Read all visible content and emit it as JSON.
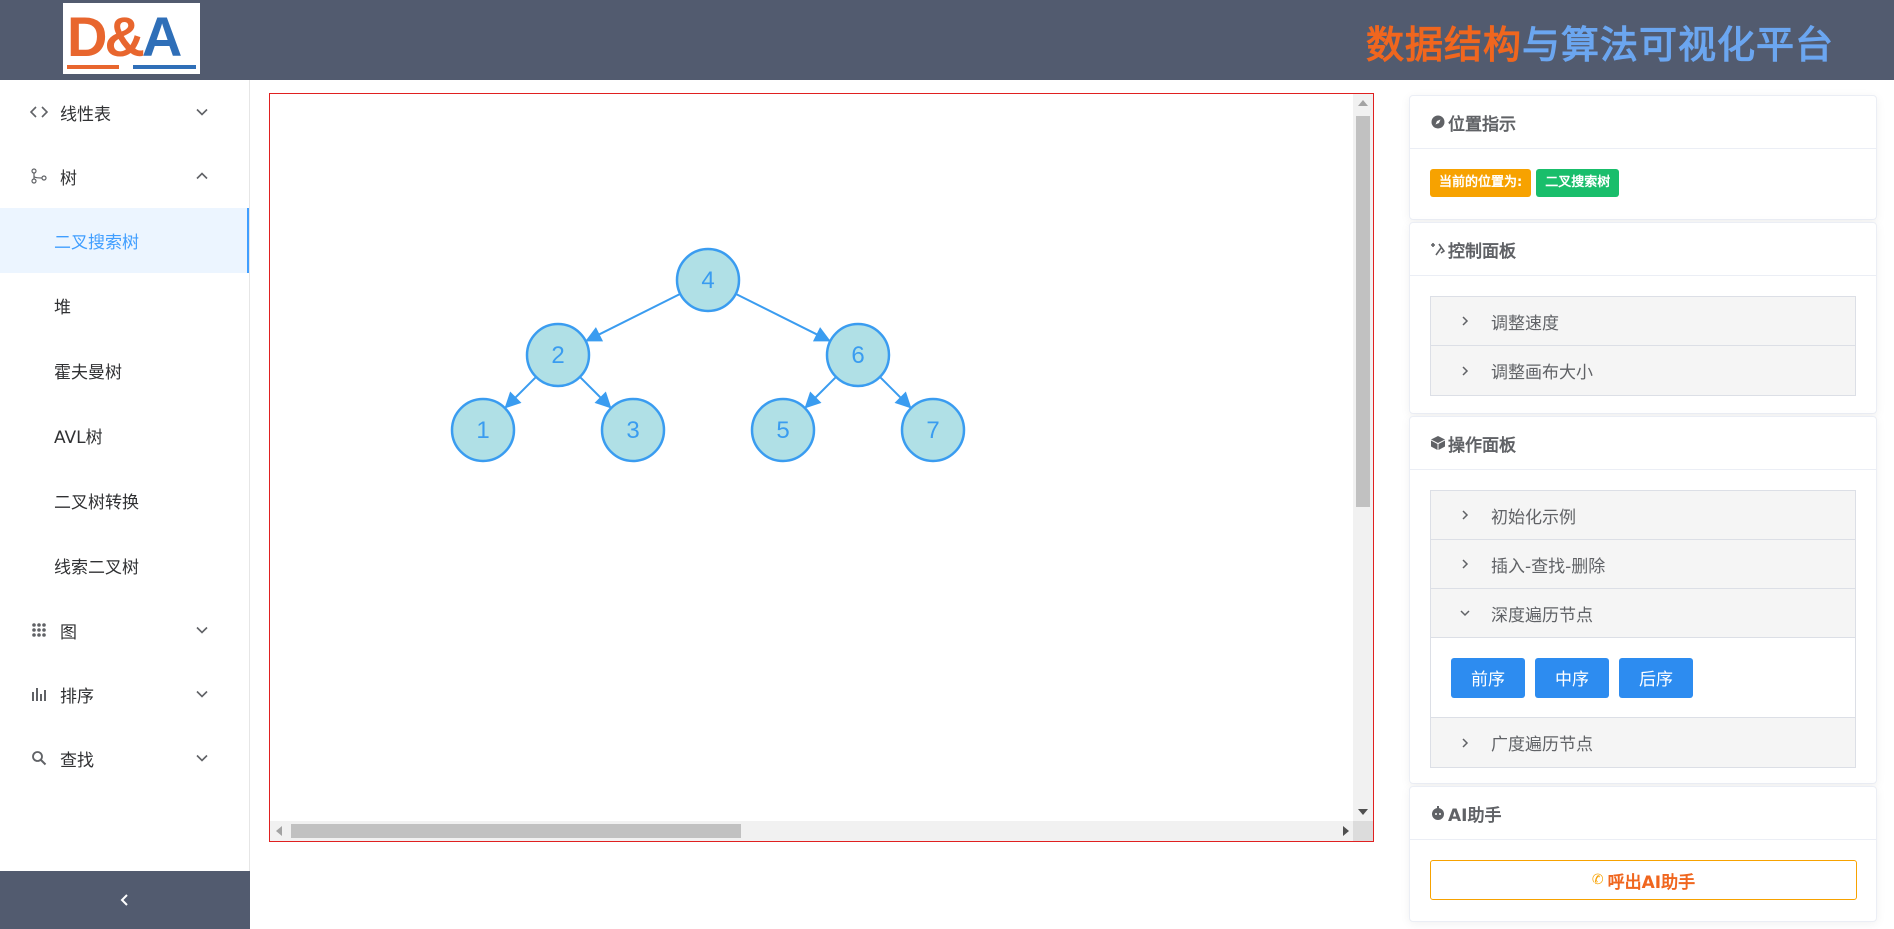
{
  "header": {
    "logo": {
      "d": "D",
      "amp": "&",
      "a": "A"
    },
    "title_parts": [
      "数据结构",
      "与",
      "算法",
      "可视化平台"
    ]
  },
  "sidebar": {
    "menus": [
      {
        "label": "线性表",
        "icon": "code-icon",
        "expanded": false
      },
      {
        "label": "树",
        "icon": "tree-icon",
        "expanded": true
      },
      {
        "label": "图",
        "icon": "grid-icon",
        "expanded": false
      },
      {
        "label": "排序",
        "icon": "bar-chart-icon",
        "expanded": false
      },
      {
        "label": "查找",
        "icon": "search-icon",
        "expanded": false
      }
    ],
    "tree_items": [
      "二叉搜索树",
      "堆",
      "霍夫曼树",
      "AVL树",
      "二叉树转换",
      "线索二叉树"
    ],
    "active_item": "二叉搜索树",
    "collapse_icon": "chevron-left-icon"
  },
  "canvas": {
    "tree": {
      "root": 4,
      "nodes": [
        4,
        2,
        6,
        1,
        3,
        5,
        7
      ],
      "edges": [
        [
          4,
          2
        ],
        [
          4,
          6
        ],
        [
          2,
          1
        ],
        [
          2,
          3
        ],
        [
          6,
          5
        ],
        [
          6,
          7
        ]
      ]
    },
    "colors": {
      "node_fill": "#b0e0e6",
      "node_stroke": "#3a9cf0",
      "text": "#3a9cf0",
      "edge": "#3a9cf0",
      "border": "#e02020"
    }
  },
  "position_panel": {
    "title": "位置指示",
    "icon": "compass-icon",
    "label": "当前的位置为:",
    "value": "二叉搜索树"
  },
  "control_panel": {
    "title": "控制面板",
    "icon": "tool-icon",
    "items": [
      "调整速度",
      "调整画布大小"
    ]
  },
  "operation_panel": {
    "title": "操作面板",
    "icon": "cube-icon",
    "items": [
      {
        "label": "初始化示例",
        "expanded": false
      },
      {
        "label": "插入-查找-删除",
        "expanded": false
      },
      {
        "label": "深度遍历节点",
        "expanded": true
      },
      {
        "label": "广度遍历节点",
        "expanded": false
      }
    ],
    "dfs_buttons": [
      "前序",
      "中序",
      "后序"
    ]
  },
  "ai_panel": {
    "title": "AI助手",
    "icon": "robot-icon",
    "button": "呼出AI助手"
  }
}
